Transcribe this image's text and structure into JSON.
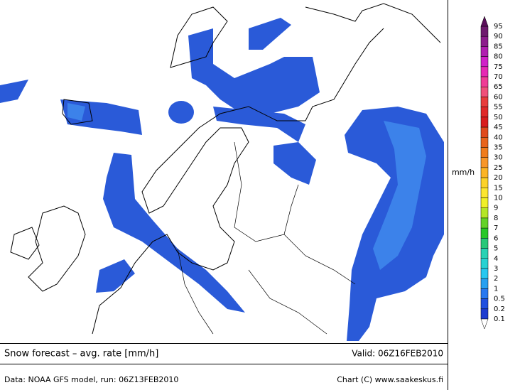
{
  "footer": {
    "title": "Snow forecast – avg. rate [mm/h]",
    "valid": "Valid: 06Z16FEB2010",
    "data_source": "Data: NOAA GFS model, run: 06Z13FEB2010",
    "credit": "Chart (C) www.saakeskus.fi"
  },
  "colorbar": {
    "unit": "mm/h",
    "labels": [
      "95",
      "90",
      "85",
      "80",
      "75",
      "70",
      "65",
      "60",
      "55",
      "50",
      "45",
      "40",
      "35",
      "30",
      "25",
      "20",
      "15",
      "10",
      "9",
      "8",
      "7",
      "6",
      "5",
      "4",
      "3",
      "2",
      "1",
      "0.5",
      "0.2",
      "0.1"
    ],
    "top_color": "#5a0f5a",
    "bottom_color": "#ffffff",
    "colors": [
      "#6e1a6e",
      "#8c1c8c",
      "#b01eb0",
      "#d020c8",
      "#e628b4",
      "#f03c96",
      "#f0507a",
      "#e83c3c",
      "#e02828",
      "#d81c1c",
      "#e04a1c",
      "#e8641c",
      "#f07c1c",
      "#f89628",
      "#fcb424",
      "#fcd228",
      "#fce630",
      "#f0f028",
      "#b4e628",
      "#64d228",
      "#28c828",
      "#28c878",
      "#28d2b4",
      "#28d2d2",
      "#28c8f0",
      "#28a0f0",
      "#2878f0",
      "#2050e0",
      "#1e3cd0"
    ]
  }
}
